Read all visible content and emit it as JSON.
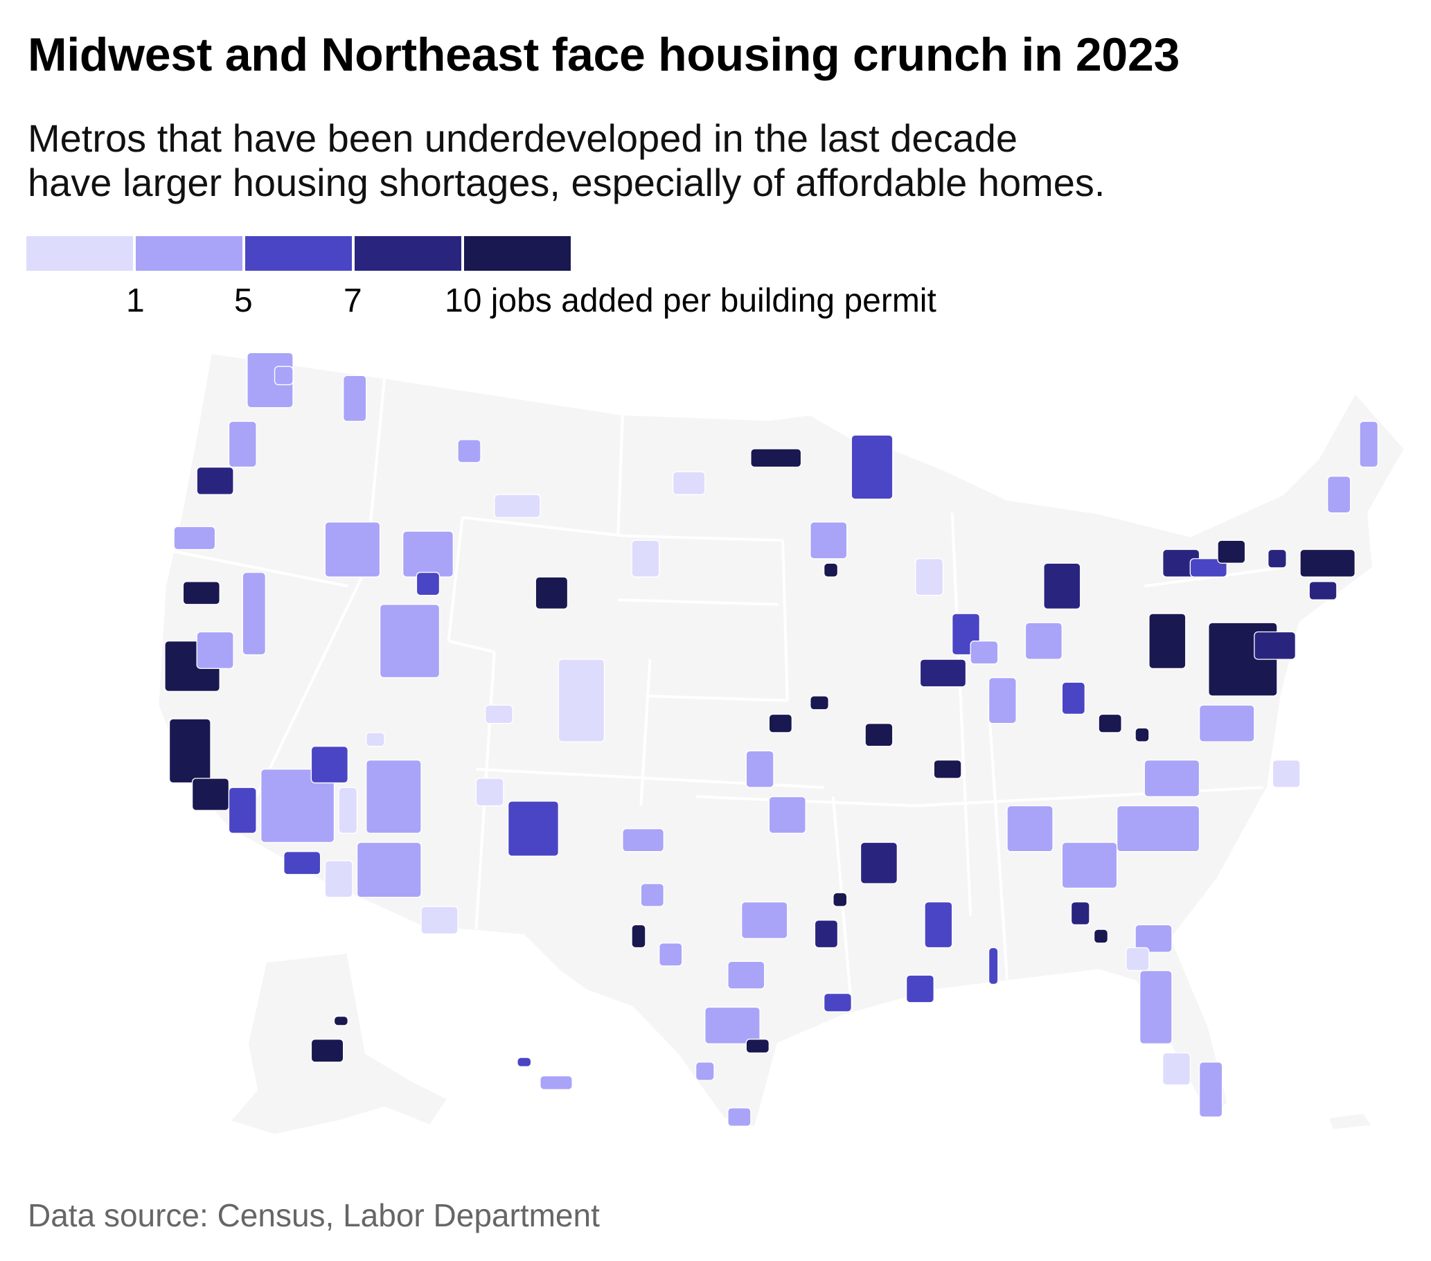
{
  "title": "Midwest and Northeast face housing crunch in 2023",
  "subtitle": {
    "line1": "Metros that have been underdeveloped in the last decade",
    "line2": "have larger housing shortages, especially of affordable homes."
  },
  "legend": {
    "colors": [
      "#dedcfd",
      "#a9a4f8",
      "#4a45c4",
      "#29257f",
      "#1a1850"
    ],
    "breaks": [
      "1",
      "5",
      "7"
    ],
    "last_label": "10 jobs added per building permit"
  },
  "map": {
    "base_color": "#f5f5f5",
    "border_color": "#ffffff",
    "region": "United States metro areas"
  },
  "source": "Data source: Census, Labor Department"
}
